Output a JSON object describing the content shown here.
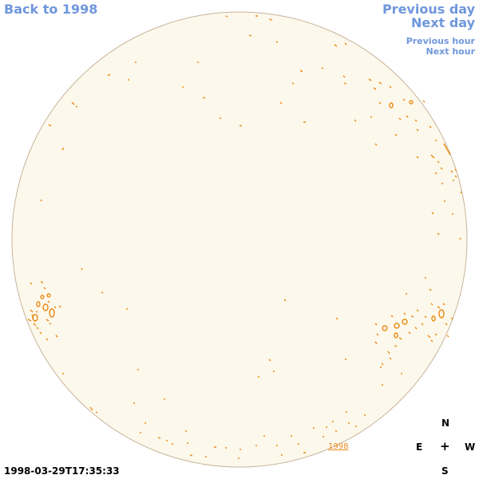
{
  "nav": {
    "back_label": "Back to 1998",
    "prev_day_label": "Previous day",
    "next_day_label": "Next day",
    "prev_hour_label": "Previous hour",
    "next_hour_label": "Next hour"
  },
  "disk": {
    "fill_color": "#fdf8ec",
    "edge_color": "#c8b49b",
    "feature_color": "#ea8a12",
    "year_label": "1998"
  },
  "compass": {
    "north": "N",
    "east": "E",
    "center": "+",
    "west": "W",
    "south": "S"
  },
  "timestamp": "1998-03-29T17:35:33",
  "colors": {
    "link": "#6f97dc",
    "text": "#000000"
  }
}
